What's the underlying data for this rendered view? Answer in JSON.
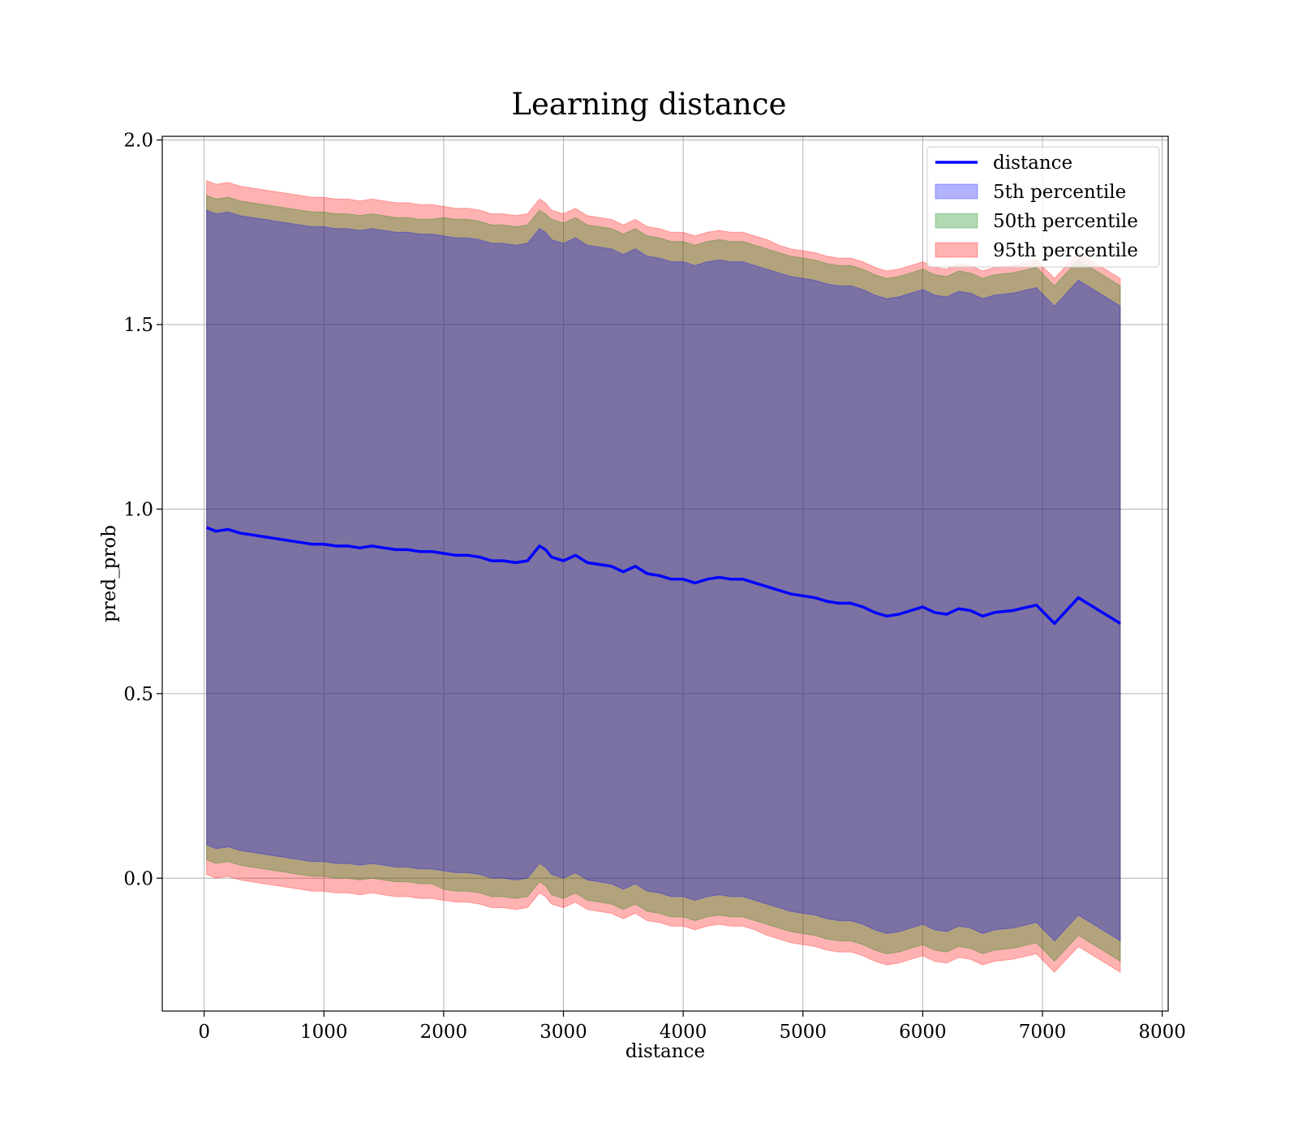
{
  "chart_data": {
    "type": "line",
    "title": "Learning distance",
    "xlabel": "distance",
    "ylabel": "pred_prob",
    "xlim": [
      -350,
      8050
    ],
    "ylim": [
      -0.36,
      2.01
    ],
    "xticks": [
      0,
      1000,
      2000,
      3000,
      4000,
      5000,
      6000,
      7000,
      8000
    ],
    "yticks": [
      0.0,
      0.5,
      1.0,
      1.5,
      2.0
    ],
    "xtick_labels": [
      "0",
      "1000",
      "2000",
      "3000",
      "4000",
      "5000",
      "6000",
      "7000",
      "8000"
    ],
    "ytick_labels": [
      "0.0",
      "0.5",
      "1.0",
      "1.5",
      "2.0"
    ],
    "grid": true,
    "legend_position": "top-right",
    "legend": [
      "distance",
      "5th percentile",
      "50th percentile",
      "95th percentile"
    ],
    "colors": {
      "line": "#0000ff",
      "band_5th": "#0000ff",
      "band_50th": "#008000",
      "band_95th": "#ff0000"
    },
    "x": [
      20,
      100,
      200,
      300,
      400,
      500,
      600,
      700,
      800,
      900,
      1000,
      1100,
      1200,
      1300,
      1400,
      1500,
      1600,
      1700,
      1800,
      1900,
      2000,
      2100,
      2200,
      2300,
      2400,
      2500,
      2600,
      2700,
      2800,
      2850,
      2900,
      3000,
      3100,
      3200,
      3300,
      3400,
      3500,
      3600,
      3700,
      3800,
      3900,
      4000,
      4100,
      4200,
      4300,
      4400,
      4500,
      4600,
      4700,
      4800,
      4900,
      5000,
      5100,
      5200,
      5300,
      5400,
      5500,
      5600,
      5700,
      5800,
      5900,
      6000,
      6100,
      6200,
      6300,
      6400,
      6500,
      6600,
      6750,
      6950,
      7100,
      7300,
      7650
    ],
    "series": [
      {
        "name": "distance",
        "values": [
          0.95,
          0.94,
          0.945,
          0.935,
          0.93,
          0.925,
          0.92,
          0.915,
          0.91,
          0.905,
          0.905,
          0.9,
          0.9,
          0.895,
          0.9,
          0.895,
          0.89,
          0.89,
          0.885,
          0.885,
          0.88,
          0.875,
          0.875,
          0.87,
          0.86,
          0.86,
          0.855,
          0.86,
          0.9,
          0.89,
          0.87,
          0.86,
          0.875,
          0.855,
          0.85,
          0.845,
          0.83,
          0.845,
          0.825,
          0.82,
          0.81,
          0.81,
          0.8,
          0.81,
          0.815,
          0.81,
          0.81,
          0.8,
          0.79,
          0.78,
          0.77,
          0.765,
          0.76,
          0.75,
          0.745,
          0.745,
          0.735,
          0.72,
          0.71,
          0.715,
          0.725,
          0.735,
          0.72,
          0.715,
          0.73,
          0.725,
          0.71,
          0.72,
          0.725,
          0.74,
          0.69,
          0.76,
          0.69
        ]
      }
    ],
    "bands": [
      {
        "name": "5th percentile",
        "lower": [
          0.09,
          0.08,
          0.085,
          0.075,
          0.07,
          0.065,
          0.06,
          0.055,
          0.05,
          0.045,
          0.045,
          0.04,
          0.04,
          0.035,
          0.04,
          0.035,
          0.03,
          0.03,
          0.025,
          0.025,
          0.02,
          0.015,
          0.015,
          0.01,
          0.0,
          0.0,
          -0.005,
          0.0,
          0.04,
          0.03,
          0.01,
          0.0,
          0.015,
          -0.005,
          -0.01,
          -0.015,
          -0.03,
          -0.015,
          -0.035,
          -0.04,
          -0.05,
          -0.05,
          -0.06,
          -0.05,
          -0.045,
          -0.05,
          -0.05,
          -0.06,
          -0.07,
          -0.08,
          -0.09,
          -0.095,
          -0.1,
          -0.11,
          -0.115,
          -0.115,
          -0.125,
          -0.14,
          -0.15,
          -0.145,
          -0.135,
          -0.125,
          -0.14,
          -0.145,
          -0.13,
          -0.135,
          -0.15,
          -0.14,
          -0.135,
          -0.12,
          -0.17,
          -0.1,
          -0.17
        ],
        "upper": [
          1.81,
          1.8,
          1.805,
          1.795,
          1.79,
          1.785,
          1.78,
          1.775,
          1.77,
          1.765,
          1.765,
          1.76,
          1.76,
          1.755,
          1.76,
          1.755,
          1.75,
          1.75,
          1.745,
          1.745,
          1.74,
          1.735,
          1.735,
          1.73,
          1.72,
          1.72,
          1.715,
          1.72,
          1.76,
          1.75,
          1.73,
          1.72,
          1.735,
          1.715,
          1.71,
          1.705,
          1.69,
          1.705,
          1.685,
          1.68,
          1.67,
          1.67,
          1.66,
          1.67,
          1.675,
          1.67,
          1.67,
          1.66,
          1.65,
          1.64,
          1.63,
          1.625,
          1.62,
          1.61,
          1.605,
          1.605,
          1.595,
          1.58,
          1.57,
          1.575,
          1.585,
          1.595,
          1.58,
          1.575,
          1.59,
          1.585,
          1.57,
          1.58,
          1.585,
          1.6,
          1.55,
          1.62,
          1.55
        ]
      },
      {
        "name": "50th percentile",
        "lower": [
          0.05,
          0.04,
          0.045,
          0.035,
          0.03,
          0.025,
          0.02,
          0.015,
          0.01,
          0.005,
          0.005,
          0.0,
          0.0,
          -0.005,
          0.0,
          -0.005,
          -0.01,
          -0.01,
          -0.015,
          -0.015,
          -0.03,
          -0.035,
          -0.035,
          -0.04,
          -0.05,
          -0.05,
          -0.055,
          -0.05,
          -0.01,
          -0.02,
          -0.045,
          -0.055,
          -0.04,
          -0.06,
          -0.065,
          -0.07,
          -0.085,
          -0.07,
          -0.09,
          -0.095,
          -0.105,
          -0.105,
          -0.115,
          -0.105,
          -0.1,
          -0.105,
          -0.105,
          -0.115,
          -0.125,
          -0.135,
          -0.145,
          -0.15,
          -0.155,
          -0.165,
          -0.17,
          -0.17,
          -0.18,
          -0.195,
          -0.205,
          -0.2,
          -0.19,
          -0.18,
          -0.195,
          -0.2,
          -0.185,
          -0.19,
          -0.205,
          -0.195,
          -0.19,
          -0.175,
          -0.225,
          -0.155,
          -0.225
        ],
        "upper": [
          1.85,
          1.84,
          1.845,
          1.835,
          1.83,
          1.825,
          1.82,
          1.815,
          1.81,
          1.805,
          1.805,
          1.8,
          1.8,
          1.795,
          1.8,
          1.795,
          1.79,
          1.79,
          1.785,
          1.785,
          1.79,
          1.785,
          1.785,
          1.78,
          1.77,
          1.77,
          1.765,
          1.77,
          1.81,
          1.8,
          1.785,
          1.775,
          1.79,
          1.77,
          1.765,
          1.76,
          1.745,
          1.76,
          1.74,
          1.735,
          1.725,
          1.725,
          1.715,
          1.725,
          1.73,
          1.725,
          1.725,
          1.715,
          1.705,
          1.695,
          1.685,
          1.68,
          1.675,
          1.665,
          1.66,
          1.66,
          1.65,
          1.635,
          1.625,
          1.63,
          1.64,
          1.65,
          1.635,
          1.63,
          1.645,
          1.64,
          1.625,
          1.635,
          1.64,
          1.655,
          1.605,
          1.675,
          1.605
        ]
      },
      {
        "name": "95th percentile",
        "lower": [
          0.01,
          0.0,
          0.005,
          -0.005,
          -0.01,
          -0.015,
          -0.02,
          -0.025,
          -0.03,
          -0.035,
          -0.035,
          -0.04,
          -0.04,
          -0.045,
          -0.04,
          -0.045,
          -0.05,
          -0.05,
          -0.055,
          -0.055,
          -0.06,
          -0.065,
          -0.065,
          -0.07,
          -0.08,
          -0.08,
          -0.085,
          -0.08,
          -0.04,
          -0.05,
          -0.07,
          -0.08,
          -0.065,
          -0.085,
          -0.09,
          -0.095,
          -0.11,
          -0.095,
          -0.115,
          -0.12,
          -0.13,
          -0.13,
          -0.14,
          -0.13,
          -0.125,
          -0.13,
          -0.13,
          -0.14,
          -0.155,
          -0.165,
          -0.175,
          -0.18,
          -0.185,
          -0.195,
          -0.2,
          -0.2,
          -0.21,
          -0.225,
          -0.235,
          -0.23,
          -0.22,
          -0.21,
          -0.225,
          -0.23,
          -0.215,
          -0.22,
          -0.235,
          -0.225,
          -0.22,
          -0.205,
          -0.255,
          -0.185,
          -0.255
        ],
        "upper": [
          1.89,
          1.88,
          1.885,
          1.875,
          1.87,
          1.865,
          1.86,
          1.855,
          1.85,
          1.845,
          1.845,
          1.84,
          1.84,
          1.835,
          1.84,
          1.835,
          1.83,
          1.83,
          1.825,
          1.825,
          1.82,
          1.815,
          1.815,
          1.81,
          1.8,
          1.8,
          1.795,
          1.8,
          1.84,
          1.83,
          1.81,
          1.8,
          1.815,
          1.795,
          1.79,
          1.785,
          1.77,
          1.785,
          1.765,
          1.76,
          1.75,
          1.75,
          1.74,
          1.75,
          1.755,
          1.75,
          1.75,
          1.74,
          1.73,
          1.715,
          1.705,
          1.7,
          1.695,
          1.685,
          1.68,
          1.68,
          1.67,
          1.655,
          1.645,
          1.65,
          1.66,
          1.67,
          1.655,
          1.65,
          1.665,
          1.66,
          1.645,
          1.655,
          1.66,
          1.675,
          1.625,
          1.695,
          1.625
        ]
      }
    ]
  }
}
